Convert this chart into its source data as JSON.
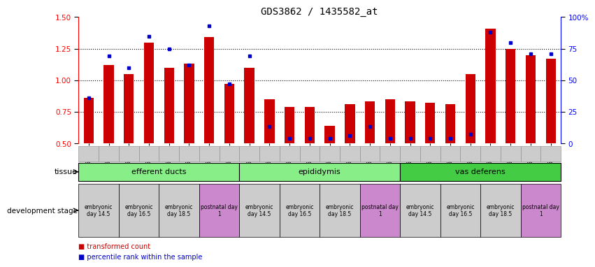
{
  "title": "GDS3862 / 1435582_at",
  "samples": [
    "GSM560923",
    "GSM560924",
    "GSM560925",
    "GSM560926",
    "GSM560927",
    "GSM560928",
    "GSM560929",
    "GSM560930",
    "GSM560931",
    "GSM560932",
    "GSM560933",
    "GSM560934",
    "GSM560935",
    "GSM560936",
    "GSM560937",
    "GSM560938",
    "GSM560939",
    "GSM560940",
    "GSM560941",
    "GSM560942",
    "GSM560943",
    "GSM560944",
    "GSM560945",
    "GSM560946"
  ],
  "bar_values": [
    0.86,
    1.12,
    1.05,
    1.3,
    1.1,
    1.13,
    1.34,
    0.97,
    1.1,
    0.85,
    0.79,
    0.79,
    0.64,
    0.81,
    0.83,
    0.85,
    0.83,
    0.82,
    0.81,
    1.05,
    1.41,
    1.25,
    1.2,
    1.17
  ],
  "dot_values": [
    0.86,
    1.19,
    1.1,
    1.35,
    1.25,
    1.12,
    1.43,
    0.97,
    1.19,
    0.63,
    0.54,
    0.54,
    0.54,
    0.56,
    0.63,
    0.54,
    0.54,
    0.54,
    0.54,
    0.57,
    1.38,
    1.3,
    1.21,
    1.21
  ],
  "ylim_left": [
    0.5,
    1.5
  ],
  "ylim_right": [
    0,
    100
  ],
  "yticks_left": [
    0.5,
    0.75,
    1.0,
    1.25,
    1.5
  ],
  "yticks_right": [
    0,
    25,
    50,
    75,
    100
  ],
  "yticklabels_right": [
    "0",
    "25",
    "50",
    "75",
    "100%"
  ],
  "bar_color": "#cc0000",
  "dot_color": "#0000cc",
  "tissue_groups": [
    {
      "label": "efferent ducts",
      "start": 0,
      "end": 7,
      "color": "#88ee88"
    },
    {
      "label": "epididymis",
      "start": 8,
      "end": 15,
      "color": "#88ee88"
    },
    {
      "label": "vas deferens",
      "start": 16,
      "end": 23,
      "color": "#44cc44"
    }
  ],
  "dev_stage_groups": [
    {
      "label": "embryonic\nday 14.5",
      "start": 0,
      "end": 1,
      "color": "#cccccc"
    },
    {
      "label": "embryonic\nday 16.5",
      "start": 2,
      "end": 3,
      "color": "#cccccc"
    },
    {
      "label": "embryonic\nday 18.5",
      "start": 4,
      "end": 5,
      "color": "#cccccc"
    },
    {
      "label": "postnatal day\n1",
      "start": 6,
      "end": 7,
      "color": "#cc88cc"
    },
    {
      "label": "embryonic\nday 14.5",
      "start": 8,
      "end": 9,
      "color": "#cccccc"
    },
    {
      "label": "embryonic\nday 16.5",
      "start": 10,
      "end": 11,
      "color": "#cccccc"
    },
    {
      "label": "embryonic\nday 18.5",
      "start": 12,
      "end": 13,
      "color": "#cccccc"
    },
    {
      "label": "postnatal day\n1",
      "start": 14,
      "end": 15,
      "color": "#cc88cc"
    },
    {
      "label": "embryonic\nday 14.5",
      "start": 16,
      "end": 17,
      "color": "#cccccc"
    },
    {
      "label": "embryonic\nday 16.5",
      "start": 18,
      "end": 19,
      "color": "#cccccc"
    },
    {
      "label": "embryonic\nday 18.5",
      "start": 20,
      "end": 21,
      "color": "#cccccc"
    },
    {
      "label": "postnatal day\n1",
      "start": 22,
      "end": 23,
      "color": "#cc88cc"
    }
  ],
  "legend_bar_label": "transformed count",
  "legend_dot_label": "percentile rank within the sample",
  "tissue_row_label": "tissue",
  "dev_stage_row_label": "development stage",
  "background_color": "#ffffff",
  "xtick_bg": "#cccccc",
  "figsize": [
    8.41,
    3.84
  ],
  "dpi": 100
}
